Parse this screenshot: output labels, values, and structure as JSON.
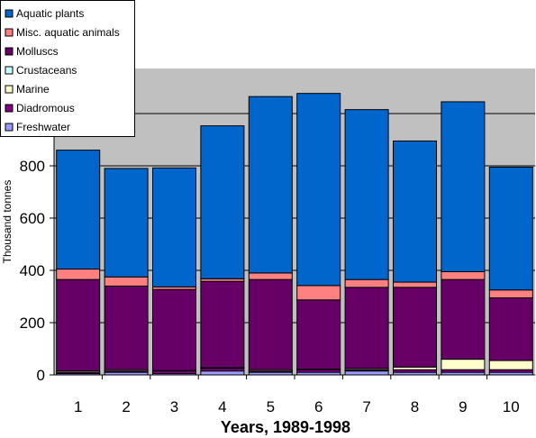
{
  "chart_data": {
    "type": "bar",
    "stacked": true,
    "categories": [
      "1",
      "2",
      "3",
      "4",
      "5",
      "6",
      "7",
      "8",
      "9",
      "10"
    ],
    "xlabel": "Years, 1989-1998",
    "ylabel": "Thousand tonnes",
    "ylim": [
      0,
      1100
    ],
    "yticks": [
      0,
      200,
      400,
      600,
      800
    ],
    "grid": true,
    "legend_position": "top-left",
    "series": [
      {
        "name": "Freshwater",
        "color": "#9999FF",
        "values": [
          5,
          10,
          5,
          15,
          10,
          10,
          15,
          10,
          10,
          10
        ]
      },
      {
        "name": "Diadromous",
        "color": "#800080",
        "values": [
          5,
          5,
          10,
          10,
          5,
          10,
          5,
          10,
          10,
          10
        ]
      },
      {
        "name": "Marine",
        "color": "#FFFFCC",
        "values": [
          5,
          5,
          2,
          3,
          5,
          2,
          5,
          10,
          40,
          35
        ]
      },
      {
        "name": "Crustaceans",
        "color": "#CCFFFF",
        "values": [
          0,
          0,
          0,
          0,
          0,
          0,
          0,
          0,
          0,
          0
        ]
      },
      {
        "name": "Molluscs",
        "color": "#660066",
        "values": [
          350,
          320,
          310,
          330,
          345,
          265,
          310,
          305,
          305,
          240
        ]
      },
      {
        "name": "Misc. aquatic animals",
        "color": "#FF8080",
        "values": [
          40,
          35,
          10,
          10,
          25,
          55,
          30,
          20,
          30,
          30
        ]
      },
      {
        "name": "Aquatic plants",
        "color": "#0066CC",
        "values": [
          455,
          415,
          455,
          585,
          675,
          735,
          650,
          540,
          650,
          470
        ]
      }
    ]
  }
}
